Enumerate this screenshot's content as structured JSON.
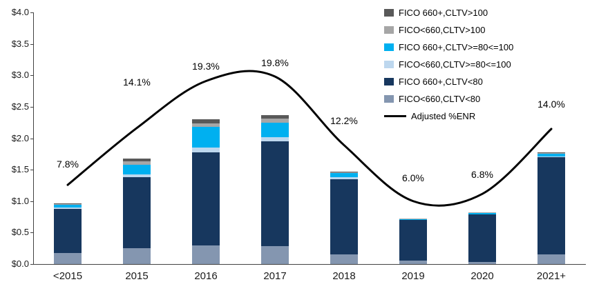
{
  "chart_data": {
    "type": "stacked-bar+line",
    "categories": [
      "<2015",
      "2015",
      "2016",
      "2017",
      "2018",
      "2019",
      "2020",
      "2021+"
    ],
    "ylim": [
      0,
      4
    ],
    "y_ticks": [
      {
        "v": 0.0,
        "label": "$0.0"
      },
      {
        "v": 0.5,
        "label": "$0.5"
      },
      {
        "v": 1.0,
        "label": "$1.0"
      },
      {
        "v": 1.5,
        "label": "$1.5"
      },
      {
        "v": 2.0,
        "label": "$2.0"
      },
      {
        "v": 2.5,
        "label": "$2.5"
      },
      {
        "v": 3.0,
        "label": "$3.0"
      },
      {
        "v": 3.5,
        "label": "$3.5"
      },
      {
        "v": 4.0,
        "label": "$4.0"
      }
    ],
    "grid": false,
    "legend_position": "top-right",
    "series": [
      {
        "name": "FICO<660,CLTV<80",
        "color": "#8496B0",
        "values": [
          0.18,
          0.25,
          0.3,
          0.28,
          0.15,
          0.05,
          0.03,
          0.15
        ]
      },
      {
        "name": "FICO 660+,CLTV<80",
        "color": "#17375E",
        "values": [
          0.7,
          1.13,
          1.47,
          1.67,
          1.2,
          0.65,
          0.76,
          1.55
        ]
      },
      {
        "name": "FICO<660,CLTV>=80<=100",
        "color": "#BDD7EE",
        "values": [
          0.02,
          0.05,
          0.08,
          0.07,
          0.03,
          0.0,
          0.0,
          0.01
        ]
      },
      {
        "name": "FICO 660+,CLTV>=80<=100",
        "color": "#00B0F0",
        "values": [
          0.04,
          0.15,
          0.33,
          0.23,
          0.07,
          0.01,
          0.02,
          0.04
        ]
      },
      {
        "name": "FICO<660,CLTV>100",
        "color": "#A6A6A6",
        "values": [
          0.01,
          0.05,
          0.06,
          0.06,
          0.01,
          0.01,
          0.01,
          0.02
        ]
      },
      {
        "name": "FICO 660+,CLTV>100",
        "color": "#595959",
        "values": [
          0.01,
          0.05,
          0.06,
          0.06,
          0.01,
          0.0,
          0.0,
          0.01
        ]
      }
    ],
    "line": {
      "name": "Adjusted %ENR",
      "color": "#000000",
      "values_pct": [
        7.8,
        14.1,
        19.3,
        19.8,
        12.2,
        6.0,
        6.8,
        14.0
      ],
      "labels": [
        "7.8%",
        "14.1%",
        "19.3%",
        "19.8%",
        "12.2%",
        "6.0%",
        "6.8%",
        "14.0%"
      ]
    }
  }
}
